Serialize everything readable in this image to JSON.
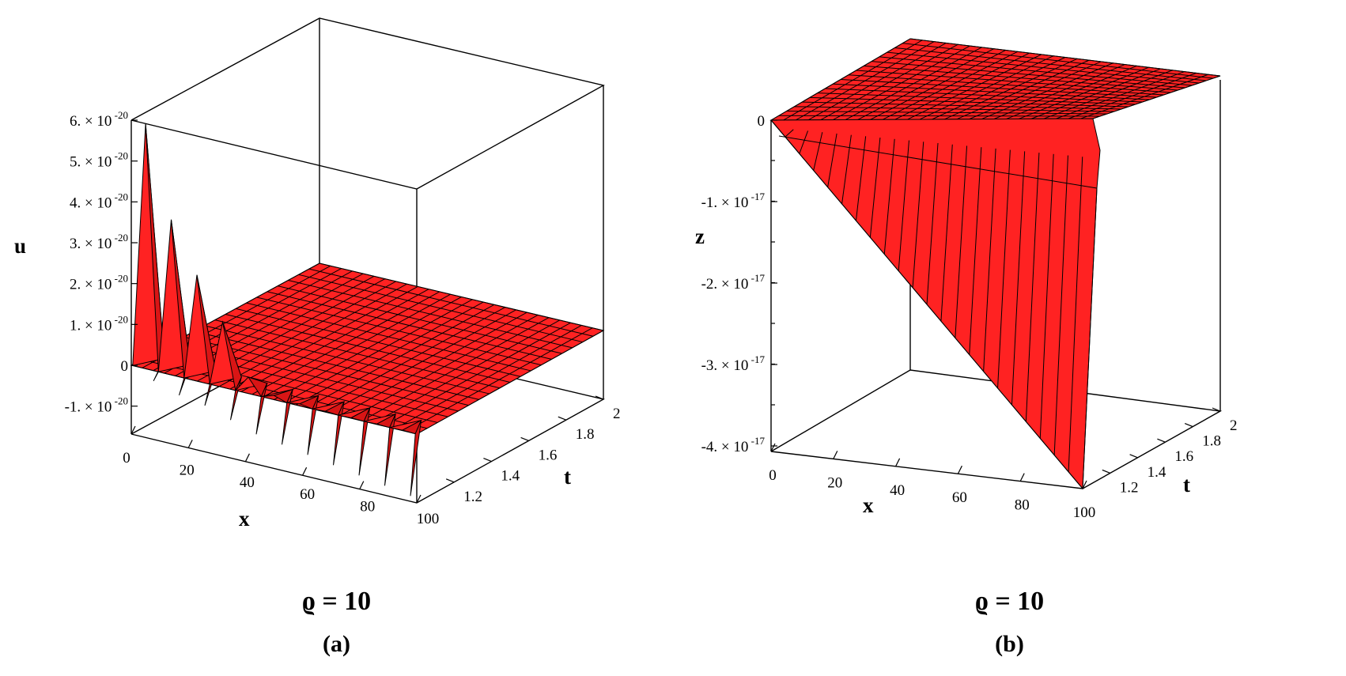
{
  "chart_data": [
    {
      "type": "surface",
      "panel_label": "(a)",
      "parameter_label": "ϱ = 10",
      "xlabel": "x",
      "ylabel": "t",
      "zlabel": "u",
      "xlim": [
        0,
        100
      ],
      "ylim": [
        1,
        2
      ],
      "zlim": [
        -1.5e-20,
        6e-20
      ],
      "x_ticks": [
        "0",
        "20",
        "40",
        "60",
        "80",
        "100"
      ],
      "y_ticks": [
        "1.2",
        "1.4",
        "1.6",
        "1.8",
        "2"
      ],
      "z_ticks": [
        {
          "mant": "6. × 10",
          "exp": "-20"
        },
        {
          "mant": "5. × 10",
          "exp": "-20"
        },
        {
          "mant": "4. × 10",
          "exp": "-20"
        },
        {
          "mant": "3. × 10",
          "exp": "-20"
        },
        {
          "mant": "2. × 10",
          "exp": "-20"
        },
        {
          "mant": "1. × 10",
          "exp": "-20"
        },
        {
          "mant": "0",
          "exp": ""
        },
        {
          "mant": "-1. × 10",
          "exp": "-20"
        }
      ],
      "edge_peaks_x": [
        5,
        14,
        23,
        32,
        41,
        50,
        59,
        68,
        77,
        86,
        95
      ],
      "edge_peaks_u": [
        6e-20,
        3.8e-20,
        2.6e-20,
        1.6e-20,
        4e-21,
        1e-21,
        5e-22,
        2e-22,
        1e-22,
        1e-22,
        1e-22
      ],
      "edge_troughs_u": [
        -3e-21,
        -5e-21,
        -6e-21,
        -8e-21,
        -1e-20,
        -1.1e-20,
        -1.2e-20,
        -1.3e-20,
        -1.4e-20,
        -1.5e-20,
        -1.6e-20
      ],
      "surface_color": "#ff2222"
    },
    {
      "type": "surface",
      "panel_label": "(b)",
      "parameter_label": "ϱ = 10",
      "xlabel": "x",
      "ylabel": "t",
      "zlabel": "z",
      "xlim": [
        0,
        100
      ],
      "ylim": [
        1,
        2
      ],
      "zlim": [
        -4.2e-17,
        0
      ],
      "x_ticks": [
        "0",
        "20",
        "40",
        "60",
        "80",
        "100"
      ],
      "y_ticks": [
        "1.2",
        "1.4",
        "1.6",
        "1.8",
        "2"
      ],
      "z_ticks": [
        {
          "mant": "0",
          "exp": ""
        },
        {
          "mant": "-1. × 10",
          "exp": "-17"
        },
        {
          "mant": "-2. × 10",
          "exp": "-17"
        },
        {
          "mant": "-3. × 10",
          "exp": "-17"
        },
        {
          "mant": "-4. × 10",
          "exp": "-17"
        }
      ],
      "surface_color": "#ff2222"
    }
  ]
}
